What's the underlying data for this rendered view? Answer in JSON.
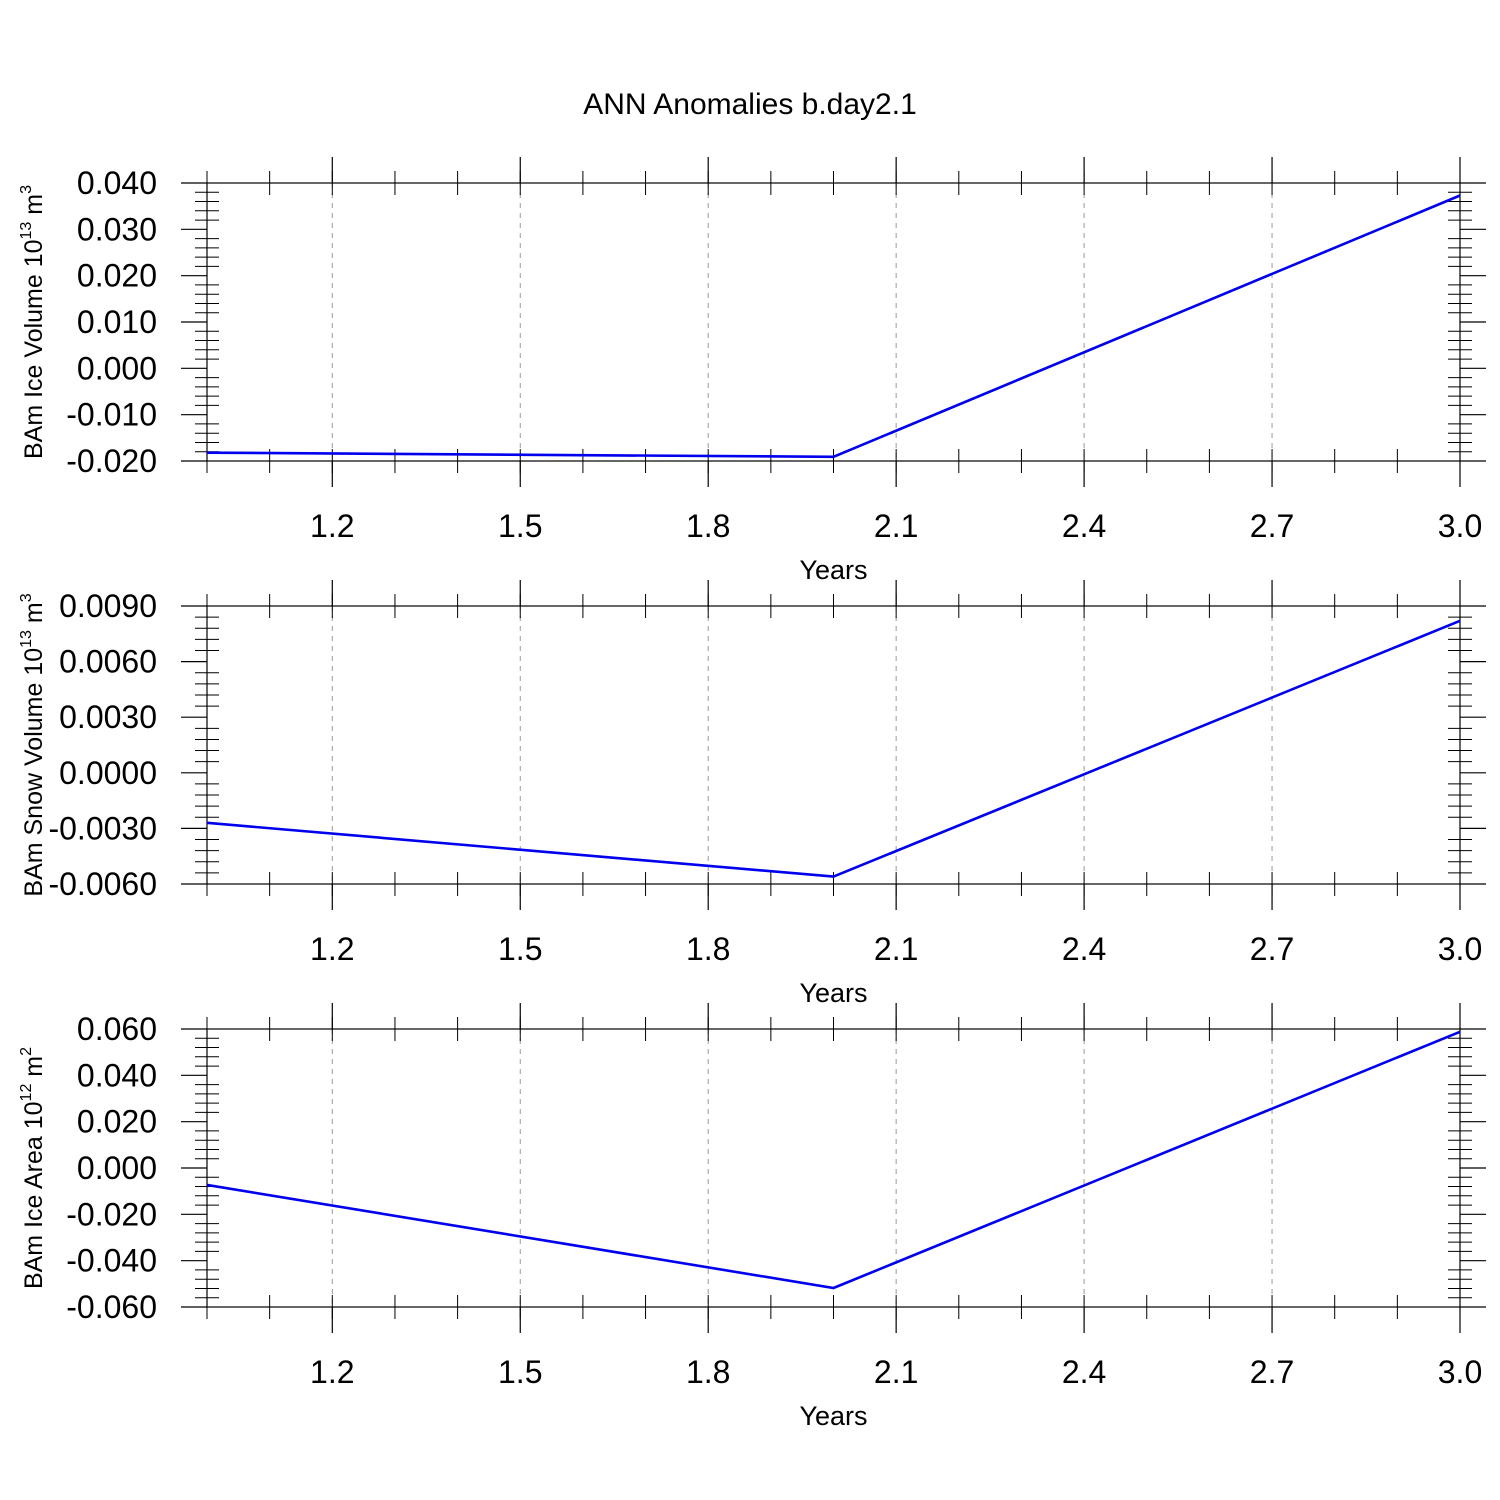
{
  "title": "ANN Anomalies b.day2.1",
  "colors": {
    "line": "#0000ee",
    "axis": "#000000",
    "grid": "#9a9a9a"
  },
  "chart_data": [
    {
      "type": "line",
      "ylabel": {
        "text": "BAm Ice Volume 10",
        "sup1": "13",
        "unit": " m",
        "sup2": "3"
      },
      "xlabel": "Years",
      "xlim": [
        1.0,
        3.0
      ],
      "ylim": [
        -0.02,
        0.04
      ],
      "xticks": [
        "1.2",
        "1.5",
        "1.8",
        "2.1",
        "2.4",
        "2.7",
        "3.0"
      ],
      "yticks": [
        "-0.020",
        "-0.010",
        "0.000",
        "0.010",
        "0.020",
        "0.030",
        "0.040"
      ],
      "grid": "x-dashed",
      "series": [
        {
          "x": [
            1,
            2,
            3
          ],
          "y": [
            -0.0182,
            -0.0191,
            0.0373
          ]
        }
      ]
    },
    {
      "type": "line",
      "ylabel": {
        "text": "BAm Snow Volume 10",
        "sup1": "13",
        "unit": " m",
        "sup2": "3"
      },
      "xlabel": "Years",
      "xlim": [
        1.0,
        3.0
      ],
      "ylim": [
        -0.006,
        0.009
      ],
      "xticks": [
        "1.2",
        "1.5",
        "1.8",
        "2.1",
        "2.4",
        "2.7",
        "3.0"
      ],
      "yticks": [
        "-0.0060",
        "-0.0030",
        "0.0000",
        "0.0030",
        "0.0060",
        "0.0090"
      ],
      "grid": "x-dashed",
      "series": [
        {
          "x": [
            1,
            2,
            3
          ],
          "y": [
            -0.0027,
            -0.0056,
            0.0082
          ]
        }
      ]
    },
    {
      "type": "line",
      "ylabel": {
        "text": "BAm Ice Area 10",
        "sup1": "12",
        "unit": " m",
        "sup2": "2"
      },
      "xlabel": "Years",
      "xlim": [
        1.0,
        3.0
      ],
      "ylim": [
        -0.06,
        0.06
      ],
      "xticks": [
        "1.2",
        "1.5",
        "1.8",
        "2.1",
        "2.4",
        "2.7",
        "3.0"
      ],
      "yticks": [
        "-0.060",
        "-0.040",
        "-0.020",
        "0.000",
        "0.020",
        "0.040",
        "0.060"
      ],
      "grid": "x-dashed",
      "series": [
        {
          "x": [
            1,
            2,
            3
          ],
          "y": [
            -0.0073,
            -0.0518,
            0.0588
          ]
        }
      ]
    }
  ]
}
